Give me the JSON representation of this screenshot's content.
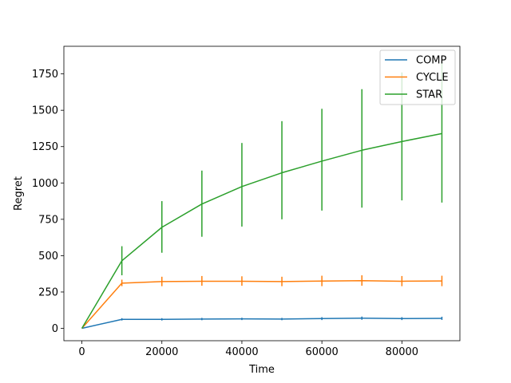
{
  "chart_data": {
    "type": "line",
    "title": "",
    "xlabel": "Time",
    "ylabel": "Regret",
    "xlim": [
      -4500,
      94500
    ],
    "ylim": [
      -85,
      1940
    ],
    "xticks": [
      0,
      20000,
      40000,
      60000,
      80000
    ],
    "yticks": [
      0,
      250,
      500,
      750,
      1000,
      1250,
      1500,
      1750
    ],
    "x": [
      0,
      10000,
      20000,
      30000,
      40000,
      50000,
      60000,
      70000,
      80000,
      90000
    ],
    "grid": false,
    "legend_position": "top-right",
    "series": [
      {
        "name": "COMP",
        "color": "#1f77b4",
        "values": [
          0,
          62,
          62,
          64,
          65,
          64,
          67,
          70,
          67,
          69
        ],
        "err_low": [
          0,
          54,
          54,
          56,
          57,
          56,
          57,
          59,
          57,
          58
        ],
        "err_high": [
          0,
          70,
          70,
          72,
          73,
          72,
          77,
          81,
          77,
          80
        ]
      },
      {
        "name": "CYCLE",
        "color": "#ff7f0e",
        "values": [
          0,
          311,
          322,
          324,
          324,
          322,
          325,
          328,
          324,
          326
        ],
        "err_low": [
          0,
          290,
          290,
          293,
          293,
          290,
          290,
          293,
          290,
          290
        ],
        "err_high": [
          0,
          335,
          355,
          360,
          358,
          355,
          362,
          365,
          360,
          362
        ]
      },
      {
        "name": "STAR",
        "color": "#2ca02c",
        "values": [
          0,
          465,
          695,
          855,
          975,
          1070,
          1150,
          1225,
          1285,
          1340
        ],
        "err_low": [
          0,
          365,
          520,
          630,
          700,
          750,
          810,
          830,
          880,
          865
        ],
        "err_high": [
          0,
          565,
          875,
          1085,
          1275,
          1425,
          1510,
          1645,
          1760,
          1830
        ]
      }
    ]
  }
}
